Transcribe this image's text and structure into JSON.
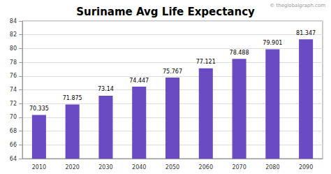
{
  "chart_data": {
    "type": "bar",
    "title": "Suriname Avg Life Expectancy",
    "annotations": [
      "© theglobalgraph.com"
    ],
    "categories": [
      "2010",
      "2020",
      "2030",
      "2040",
      "2050",
      "2060",
      "2070",
      "2080",
      "2090"
    ],
    "values": [
      70.335,
      71.875,
      73.14,
      74.447,
      75.767,
      77.121,
      78.488,
      79.901,
      81.347
    ],
    "color": "#6a4bc3",
    "ylim": [
      64,
      84
    ],
    "yticks": [
      64,
      66,
      68,
      70,
      72,
      74,
      76,
      78,
      80,
      82,
      84
    ],
    "grid": true,
    "data_labels": true
  }
}
